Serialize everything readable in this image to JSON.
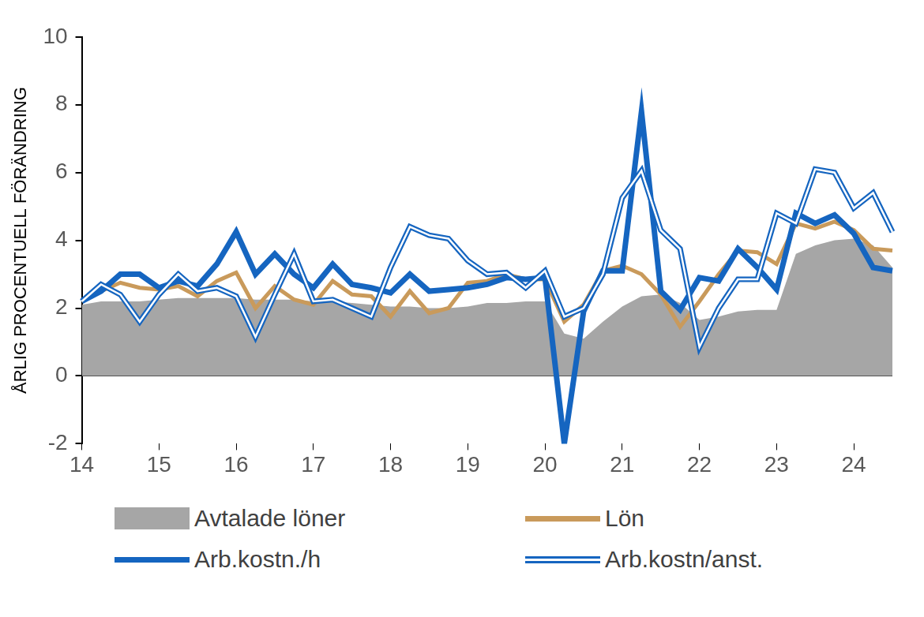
{
  "chart_data": {
    "type": "line",
    "y_label": "ÅRLIG PROCENTUELL FÖRÄNDRING",
    "categories": [
      "14",
      null,
      null,
      null,
      "15",
      null,
      null,
      null,
      "16",
      null,
      null,
      null,
      "17",
      null,
      null,
      null,
      "18",
      null,
      null,
      null,
      "19",
      null,
      null,
      null,
      "20",
      null,
      null,
      null,
      "21",
      null,
      null,
      null,
      "22",
      null,
      null,
      null,
      "23",
      null,
      null,
      null,
      "24",
      null,
      null
    ],
    "series": [
      {
        "name": "Avtalade löner",
        "type": "area",
        "color": "#a6a6a6",
        "values": [
          2.1,
          2.2,
          2.2,
          2.2,
          2.25,
          2.3,
          2.3,
          2.3,
          2.3,
          2.25,
          2.25,
          2.25,
          2.2,
          2.2,
          2.15,
          2.1,
          2.05,
          2.05,
          2.0,
          2.0,
          2.05,
          2.15,
          2.15,
          2.2,
          2.2,
          1.25,
          1.1,
          1.6,
          2.05,
          2.35,
          2.4,
          2.15,
          1.65,
          1.75,
          1.9,
          1.95,
          1.95,
          3.6,
          3.85,
          4.0,
          4.05,
          3.85,
          3.2
        ]
      },
      {
        "name": "Lön",
        "type": "line",
        "color": "#c99a5b",
        "line_style": "solid",
        "values": [
          2.2,
          2.5,
          2.75,
          2.6,
          2.55,
          2.65,
          2.35,
          2.8,
          3.05,
          2.0,
          2.65,
          2.25,
          2.1,
          2.8,
          2.4,
          2.35,
          1.75,
          2.5,
          1.85,
          2.0,
          2.75,
          2.8,
          3.0,
          2.85,
          2.85,
          1.6,
          2.1,
          3.1,
          3.25,
          3.0,
          2.4,
          1.45,
          2.2,
          3.0,
          3.7,
          3.65,
          3.3,
          4.5,
          4.35,
          4.55,
          4.3,
          3.75,
          3.7
        ]
      },
      {
        "name": "Arb.kostn./h",
        "type": "line",
        "color": "#1565c0",
        "line_style": "solid",
        "values": [
          2.2,
          2.5,
          3.0,
          3.0,
          2.6,
          2.8,
          2.65,
          3.3,
          4.25,
          3.0,
          3.6,
          3.0,
          2.6,
          3.3,
          2.7,
          2.6,
          2.45,
          3.0,
          2.5,
          2.55,
          2.6,
          2.7,
          2.9,
          2.85,
          2.9,
          -2.0,
          1.9,
          3.1,
          3.1,
          7.8,
          2.5,
          1.95,
          2.9,
          2.8,
          3.75,
          3.2,
          2.55,
          4.8,
          4.5,
          4.75,
          4.2,
          3.2,
          3.1
        ]
      },
      {
        "name": "Arb.kostn/anst.",
        "type": "line",
        "color": "#1565c0",
        "line_style": "double",
        "values": [
          2.2,
          2.7,
          2.4,
          1.6,
          2.4,
          3.0,
          2.5,
          2.6,
          2.35,
          1.15,
          2.4,
          3.6,
          2.2,
          2.25,
          2.0,
          1.75,
          3.2,
          4.4,
          4.15,
          4.05,
          3.4,
          3.0,
          3.05,
          2.6,
          3.1,
          1.75,
          2.0,
          3.0,
          5.25,
          6.05,
          4.3,
          3.75,
          0.85,
          2.0,
          2.85,
          2.85,
          4.8,
          4.5,
          6.1,
          6.0,
          4.95,
          5.4,
          4.25
        ]
      }
    ],
    "ylim": [
      -2,
      10
    ],
    "yticks": [
      -2,
      0,
      2,
      4,
      6,
      8,
      10
    ],
    "grid": false
  }
}
